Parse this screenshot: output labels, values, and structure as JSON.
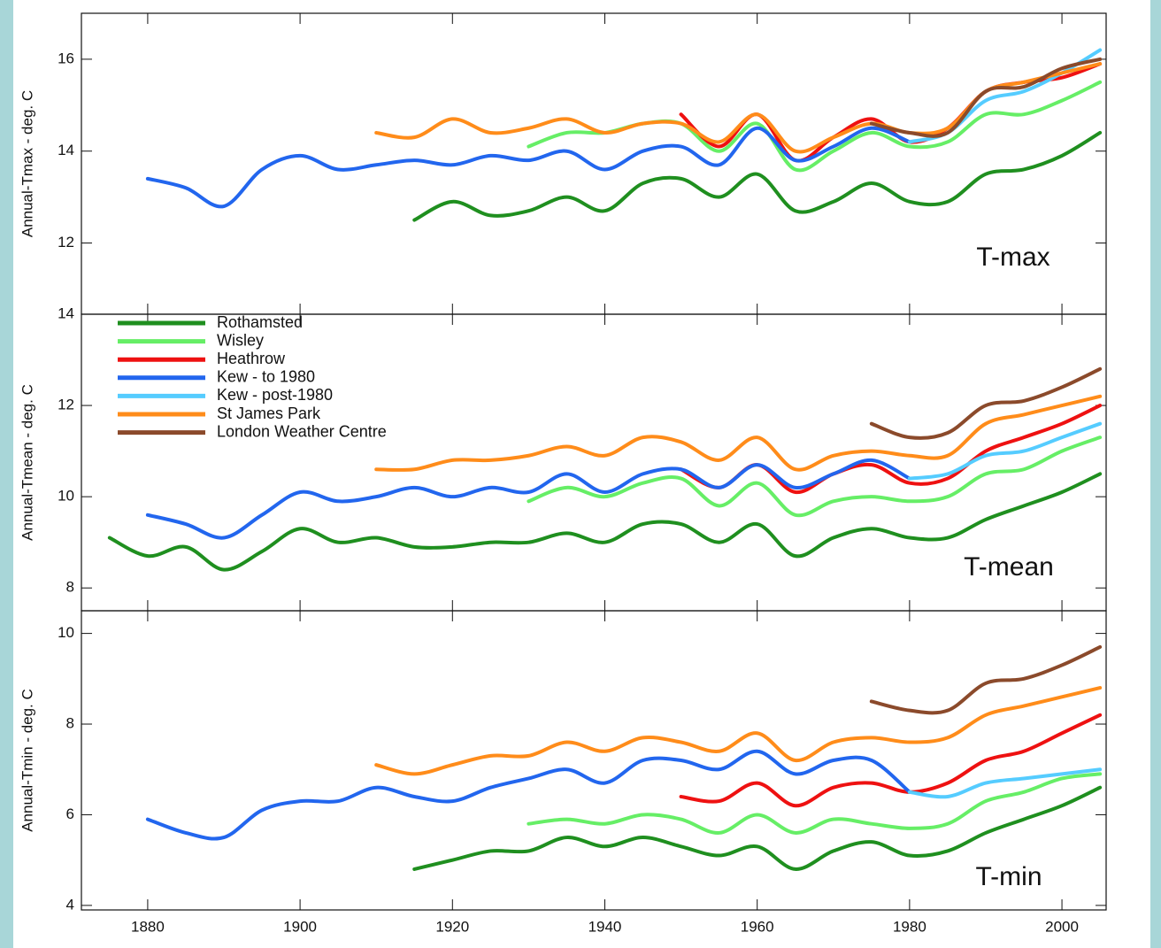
{
  "chart_data": [
    {
      "type": "line",
      "ylabel": "Annual-Tmax - deg. C",
      "panel_label": "T-max",
      "x": [
        1875,
        1880,
        1885,
        1890,
        1895,
        1900,
        1905,
        1910,
        1915,
        1920,
        1925,
        1930,
        1935,
        1940,
        1945,
        1950,
        1955,
        1960,
        1965,
        1970,
        1975,
        1980,
        1985,
        1990,
        1995,
        2000,
        2005
      ],
      "xlim": [
        1871.3,
        2005.8
      ],
      "ylim": [
        10.45,
        17
      ],
      "yticks": [
        12,
        14,
        16
      ],
      "series": [
        {
          "color": "#1f8f1f",
          "values": [
            null,
            null,
            null,
            null,
            null,
            null,
            null,
            null,
            12.5,
            12.9,
            12.6,
            12.7,
            13.0,
            12.7,
            13.3,
            13.4,
            13.0,
            13.5,
            12.7,
            12.9,
            13.3,
            12.9,
            12.9,
            13.5,
            13.6,
            13.9,
            14.4
          ]
        },
        {
          "color": "#66ee66",
          "values": [
            null,
            null,
            null,
            null,
            null,
            null,
            null,
            null,
            null,
            null,
            null,
            14.1,
            14.4,
            14.4,
            14.6,
            14.6,
            14.0,
            14.6,
            13.6,
            14.0,
            14.4,
            14.1,
            14.2,
            14.8,
            14.8,
            15.1,
            15.5
          ]
        },
        {
          "color": "#ee1111",
          "values": [
            null,
            null,
            null,
            null,
            null,
            null,
            null,
            null,
            null,
            null,
            null,
            null,
            null,
            null,
            null,
            14.8,
            14.1,
            14.8,
            13.8,
            14.3,
            14.7,
            14.2,
            14.5,
            15.3,
            15.5,
            15.6,
            15.9
          ]
        },
        {
          "color": "#2266ee",
          "values": [
            null,
            13.4,
            13.2,
            12.8,
            13.6,
            13.9,
            13.6,
            13.7,
            13.8,
            13.7,
            13.9,
            13.8,
            14.0,
            13.6,
            14.0,
            14.1,
            13.7,
            14.5,
            13.8,
            14.1,
            14.5,
            14.2,
            null,
            null,
            null,
            null,
            null
          ]
        },
        {
          "color": "#55ccff",
          "values": [
            null,
            null,
            null,
            null,
            null,
            null,
            null,
            null,
            null,
            null,
            null,
            null,
            null,
            null,
            null,
            null,
            null,
            null,
            null,
            null,
            null,
            14.2,
            14.4,
            15.1,
            15.3,
            15.7,
            16.2
          ]
        },
        {
          "color": "#ff8c1a",
          "values": [
            null,
            null,
            null,
            null,
            null,
            null,
            null,
            14.4,
            14.3,
            14.7,
            14.4,
            14.5,
            14.7,
            14.4,
            14.6,
            14.6,
            14.2,
            14.8,
            14.0,
            14.3,
            14.6,
            14.4,
            14.5,
            15.3,
            15.5,
            15.7,
            15.9
          ]
        },
        {
          "color": "#8b4a2b",
          "values": [
            null,
            null,
            null,
            null,
            null,
            null,
            null,
            null,
            null,
            null,
            null,
            null,
            null,
            null,
            null,
            null,
            null,
            null,
            null,
            null,
            14.6,
            14.4,
            14.4,
            15.3,
            15.4,
            15.8,
            16.0
          ]
        }
      ]
    },
    {
      "type": "line",
      "ylabel": "Annual-Tmean - deg. C",
      "panel_label": "T-mean",
      "legend": "upper left",
      "x": [
        1875,
        1880,
        1885,
        1890,
        1895,
        1900,
        1905,
        1910,
        1915,
        1920,
        1925,
        1930,
        1935,
        1940,
        1945,
        1950,
        1955,
        1960,
        1965,
        1970,
        1975,
        1980,
        1985,
        1990,
        1995,
        2000,
        2005
      ],
      "xlim": [
        1871.3,
        2005.8
      ],
      "ylim": [
        7.5,
        14
      ],
      "yticks": [
        8,
        10,
        12,
        14
      ],
      "series": [
        {
          "name": "Rothamsted",
          "color": "#1f8f1f",
          "values": [
            9.1,
            8.7,
            8.9,
            8.4,
            8.8,
            9.3,
            9.0,
            9.1,
            8.9,
            8.9,
            9.0,
            9.0,
            9.2,
            9.0,
            9.4,
            9.4,
            9.0,
            9.4,
            8.7,
            9.1,
            9.3,
            9.1,
            9.1,
            9.5,
            9.8,
            10.1,
            10.5
          ]
        },
        {
          "name": "Wisley",
          "color": "#66ee66",
          "values": [
            null,
            null,
            null,
            null,
            null,
            null,
            null,
            null,
            null,
            null,
            null,
            9.9,
            10.2,
            10.0,
            10.3,
            10.4,
            9.8,
            10.3,
            9.6,
            9.9,
            10.0,
            9.9,
            10.0,
            10.5,
            10.6,
            11.0,
            11.3
          ]
        },
        {
          "name": "Heathrow",
          "color": "#ee1111",
          "values": [
            null,
            null,
            null,
            null,
            null,
            null,
            null,
            null,
            null,
            null,
            null,
            null,
            null,
            null,
            null,
            10.6,
            10.2,
            10.7,
            10.1,
            10.5,
            10.7,
            10.3,
            10.4,
            11.0,
            11.3,
            11.6,
            12.0
          ]
        },
        {
          "name": "Kew - to 1980",
          "color": "#2266ee",
          "values": [
            null,
            9.6,
            9.4,
            9.1,
            9.6,
            10.1,
            9.9,
            10.0,
            10.2,
            10.0,
            10.2,
            10.1,
            10.5,
            10.1,
            10.5,
            10.6,
            10.2,
            10.7,
            10.2,
            10.5,
            10.8,
            10.4,
            null,
            null,
            null,
            null,
            null
          ]
        },
        {
          "name": "Kew - post-1980",
          "color": "#55ccff",
          "values": [
            null,
            null,
            null,
            null,
            null,
            null,
            null,
            null,
            null,
            null,
            null,
            null,
            null,
            null,
            null,
            null,
            null,
            null,
            null,
            null,
            null,
            10.4,
            10.5,
            10.9,
            11.0,
            11.3,
            11.6
          ]
        },
        {
          "name": "St James Park",
          "color": "#ff8c1a",
          "values": [
            null,
            null,
            null,
            null,
            null,
            null,
            null,
            10.6,
            10.6,
            10.8,
            10.8,
            10.9,
            11.1,
            10.9,
            11.3,
            11.2,
            10.8,
            11.3,
            10.6,
            10.9,
            11.0,
            10.9,
            10.9,
            11.6,
            11.8,
            12.0,
            12.2
          ]
        },
        {
          "name": "London Weather Centre",
          "color": "#8b4a2b",
          "values": [
            null,
            null,
            null,
            null,
            null,
            null,
            null,
            null,
            null,
            null,
            null,
            null,
            null,
            null,
            null,
            null,
            null,
            null,
            null,
            null,
            11.6,
            11.3,
            11.4,
            12.0,
            12.1,
            12.4,
            12.8
          ]
        }
      ]
    },
    {
      "type": "line",
      "ylabel": "Annual-Tmin - deg. C",
      "panel_label": "T-min",
      "x": [
        1875,
        1880,
        1885,
        1890,
        1895,
        1900,
        1905,
        1910,
        1915,
        1920,
        1925,
        1930,
        1935,
        1940,
        1945,
        1950,
        1955,
        1960,
        1965,
        1970,
        1975,
        1980,
        1985,
        1990,
        1995,
        2000,
        2005
      ],
      "xlim": [
        1871.3,
        2005.8
      ],
      "ylim": [
        3.9,
        10.5
      ],
      "yticks": [
        4,
        6,
        8,
        10
      ],
      "xticks": [
        1880,
        1900,
        1920,
        1940,
        1960,
        1980,
        2000
      ],
      "series": [
        {
          "color": "#1f8f1f",
          "values": [
            null,
            null,
            null,
            null,
            null,
            null,
            null,
            null,
            4.8,
            5.0,
            5.2,
            5.2,
            5.5,
            5.3,
            5.5,
            5.3,
            5.1,
            5.3,
            4.8,
            5.2,
            5.4,
            5.1,
            5.2,
            5.6,
            5.9,
            6.2,
            6.6
          ]
        },
        {
          "color": "#66ee66",
          "values": [
            null,
            null,
            null,
            null,
            null,
            null,
            null,
            null,
            null,
            null,
            null,
            5.8,
            5.9,
            5.8,
            6.0,
            5.9,
            5.6,
            6.0,
            5.6,
            5.9,
            5.8,
            5.7,
            5.8,
            6.3,
            6.5,
            6.8,
            6.9
          ]
        },
        {
          "color": "#ee1111",
          "values": [
            null,
            null,
            null,
            null,
            null,
            null,
            null,
            null,
            null,
            null,
            null,
            null,
            null,
            null,
            null,
            6.4,
            6.3,
            6.7,
            6.2,
            6.6,
            6.7,
            6.5,
            6.7,
            7.2,
            7.4,
            7.8,
            8.2
          ]
        },
        {
          "color": "#2266ee",
          "values": [
            null,
            5.9,
            5.6,
            5.5,
            6.1,
            6.3,
            6.3,
            6.6,
            6.4,
            6.3,
            6.6,
            6.8,
            7.0,
            6.7,
            7.2,
            7.2,
            7.0,
            7.4,
            6.9,
            7.2,
            7.2,
            6.5,
            null,
            null,
            null,
            null,
            null
          ]
        },
        {
          "color": "#55ccff",
          "values": [
            null,
            null,
            null,
            null,
            null,
            null,
            null,
            null,
            null,
            null,
            null,
            null,
            null,
            null,
            null,
            null,
            null,
            null,
            null,
            null,
            null,
            6.5,
            6.4,
            6.7,
            6.8,
            6.9,
            7.0
          ]
        },
        {
          "color": "#ff8c1a",
          "values": [
            null,
            null,
            null,
            null,
            null,
            null,
            null,
            7.1,
            6.9,
            7.1,
            7.3,
            7.3,
            7.6,
            7.4,
            7.7,
            7.6,
            7.4,
            7.8,
            7.2,
            7.6,
            7.7,
            7.6,
            7.7,
            8.2,
            8.4,
            8.6,
            8.8
          ]
        },
        {
          "color": "#8b4a2b",
          "values": [
            null,
            null,
            null,
            null,
            null,
            null,
            null,
            null,
            null,
            null,
            null,
            null,
            null,
            null,
            null,
            null,
            null,
            null,
            null,
            null,
            8.5,
            8.3,
            8.3,
            8.9,
            9.0,
            9.3,
            9.7
          ]
        }
      ]
    }
  ]
}
